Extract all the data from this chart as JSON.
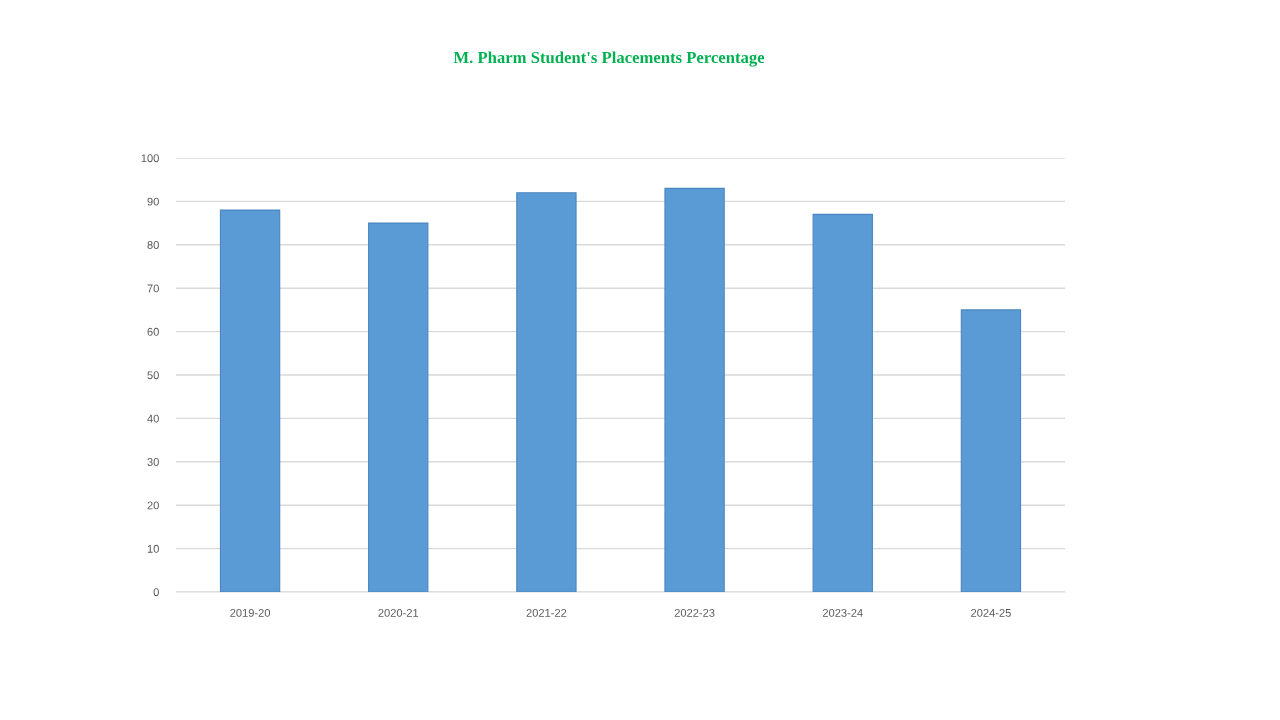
{
  "chart_data": {
    "type": "bar",
    "title": "M. Pharm Student's Placements Percentage",
    "categories": [
      "2019-20",
      "2020-21",
      "2021-22",
      "2022-23",
      "2023-24",
      "2024-25"
    ],
    "values": [
      88,
      85,
      92,
      93,
      87,
      65
    ],
    "color": "#5b9bd5",
    "ylim": [
      0,
      100
    ],
    "yticks": [
      0,
      10,
      20,
      30,
      40,
      50,
      60,
      70,
      80,
      90,
      100
    ],
    "grid": "y"
  }
}
